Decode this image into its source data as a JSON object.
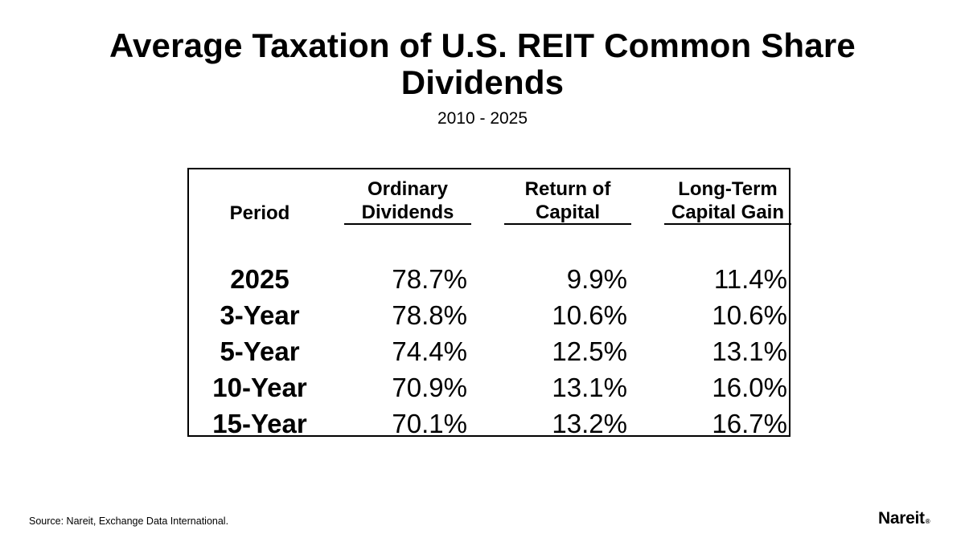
{
  "title_lines": [
    "Average Taxation of U.S. REIT Common Share",
    "Dividends"
  ],
  "subtitle": "2010 - 2025",
  "table": {
    "headers": {
      "period": "Period",
      "ordinary": [
        "Ordinary",
        "Dividends"
      ],
      "return_of_capital": [
        "Return of",
        "Capital"
      ],
      "long_term_capital_gain": [
        "Long-Term",
        "Capital Gain"
      ]
    },
    "rows": [
      {
        "period": "2025",
        "ordinary": "78.7%",
        "return_of_capital": "9.9%",
        "long_term_capital_gain": "11.4%"
      },
      {
        "period": "3-Year",
        "ordinary": "78.8%",
        "return_of_capital": "10.6%",
        "long_term_capital_gain": "10.6%"
      },
      {
        "period": "5-Year",
        "ordinary": "74.4%",
        "return_of_capital": "12.5%",
        "long_term_capital_gain": "13.1%"
      },
      {
        "period": "10-Year",
        "ordinary": "70.9%",
        "return_of_capital": "13.1%",
        "long_term_capital_gain": "16.0%"
      },
      {
        "period": "15-Year",
        "ordinary": "70.1%",
        "return_of_capital": "13.2%",
        "long_term_capital_gain": "16.7%"
      }
    ]
  },
  "source": "Source: Nareit, Exchange Data International.",
  "logo": {
    "text": "Nareit",
    "mark": "®"
  }
}
